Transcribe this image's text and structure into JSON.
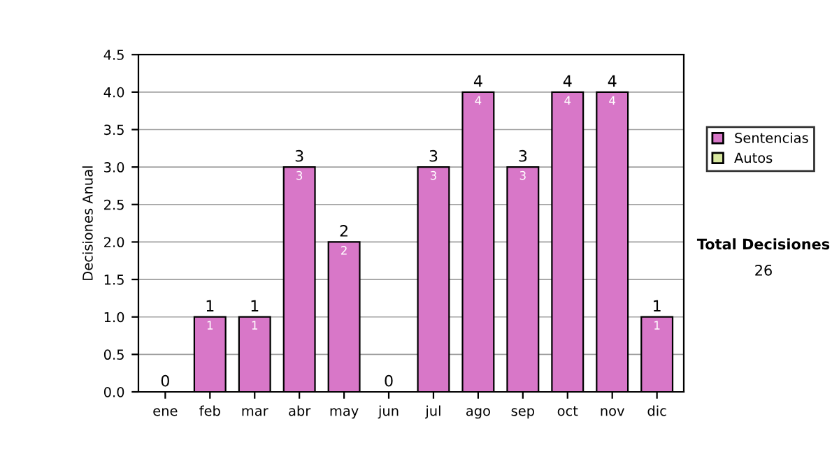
{
  "chart_data": {
    "type": "bar",
    "ylabel": "Decisiones Anual",
    "categories": [
      "ene",
      "feb",
      "mar",
      "abr",
      "may",
      "jun",
      "jul",
      "ago",
      "sep",
      "oct",
      "nov",
      "dic"
    ],
    "series": [
      {
        "name": "Sentencias",
        "color": "#d877c8",
        "values": [
          0,
          1,
          1,
          3,
          2,
          0,
          3,
          4,
          3,
          4,
          4,
          1
        ],
        "value_labels": [
          null,
          "1",
          "1",
          "3",
          "2",
          null,
          "3",
          "4",
          "3",
          "4",
          "4",
          "1"
        ]
      },
      {
        "name": "Autos",
        "color": "#d8e8a0",
        "values": [
          0,
          0,
          0,
          0,
          0,
          0,
          0,
          0,
          0,
          0,
          0,
          0
        ]
      }
    ],
    "stacked": true,
    "totals": [
      "0",
      "1",
      "1",
      "3",
      "2",
      "0",
      "3",
      "4",
      "3",
      "4",
      "4",
      "1"
    ],
    "ylim": [
      0,
      4.5
    ],
    "yticks": [
      "0.0",
      "0.5",
      "1.0",
      "1.5",
      "2.0",
      "2.5",
      "3.0",
      "3.5",
      "4.0",
      "4.5"
    ],
    "grid": "y",
    "legend": "right",
    "annotations": [
      "Total Decisiones",
      "26"
    ]
  }
}
